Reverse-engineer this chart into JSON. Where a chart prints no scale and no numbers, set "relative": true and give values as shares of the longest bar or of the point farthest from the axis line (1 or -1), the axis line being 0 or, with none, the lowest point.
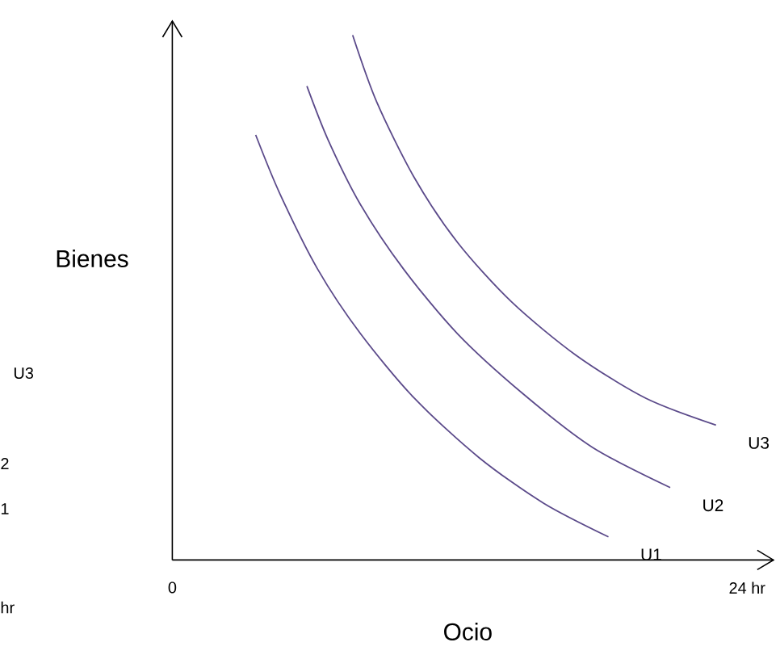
{
  "chart_data": {
    "type": "line",
    "xlabel": "Ocio",
    "ylabel": "Bienes",
    "relative": true,
    "xlim": [
      0,
      25.1
    ],
    "xticks": [
      0,
      {
        "value": 24,
        "label": "24 hr"
      }
    ],
    "marker": "none",
    "line_style": "solid",
    "grid": false,
    "series": [
      {
        "name": "U1",
        "color": "#5b4a8a",
        "x": [
          3.48,
          4.49,
          6.07,
          7.86,
          10.11,
          12.81,
          15.51,
          18.21
        ],
        "values": [
          0.81,
          0.698,
          0.554,
          0.431,
          0.308,
          0.195,
          0.108,
          0.044
        ]
      },
      {
        "name": "U2",
        "color": "#5b4a8a",
        "x": [
          5.62,
          6.51,
          7.86,
          9.66,
          11.91,
          14.61,
          17.53,
          20.79
        ],
        "values": [
          0.903,
          0.8,
          0.677,
          0.554,
          0.431,
          0.318,
          0.215,
          0.138
        ]
      },
      {
        "name": "U3",
        "color": "#5b4a8a",
        "x": [
          7.53,
          8.54,
          10.11,
          11.91,
          14.16,
          16.86,
          19.78,
          22.7
        ],
        "values": [
          1.0,
          0.872,
          0.728,
          0.605,
          0.492,
          0.39,
          0.308,
          0.257
        ]
      }
    ],
    "annotations": [
      "U3",
      "2",
      "1",
      "hr"
    ]
  }
}
